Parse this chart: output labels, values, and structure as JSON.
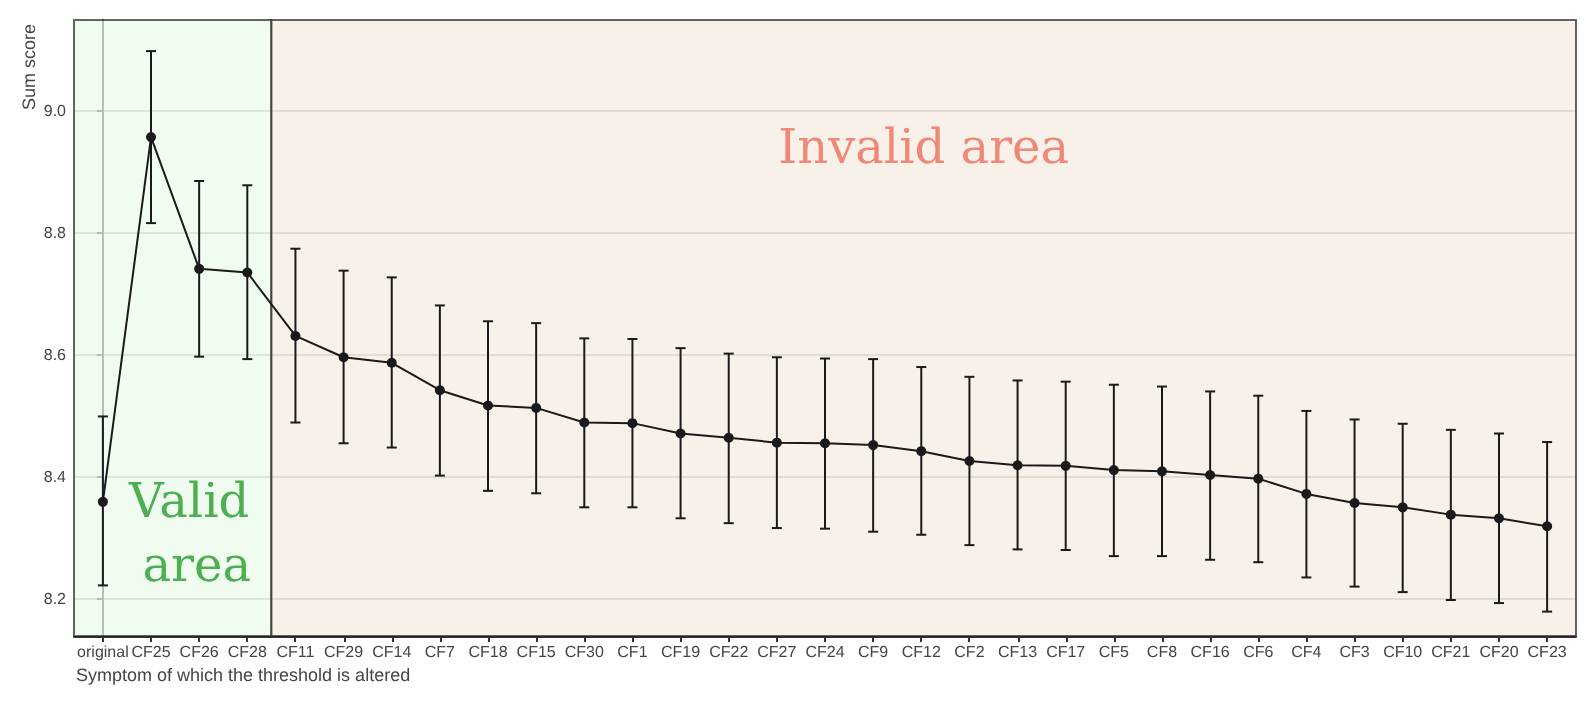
{
  "chart_data": {
    "type": "line",
    "ylabel": "Sum score",
    "xlabel": "Symptom of which the threshold is altered",
    "categories": [
      "original",
      "CF25",
      "CF26",
      "CF28",
      "CF11",
      "CF29",
      "CF14",
      "CF7",
      "CF18",
      "CF15",
      "CF30",
      "CF1",
      "CF19",
      "CF22",
      "CF27",
      "CF24",
      "CF9",
      "CF12",
      "CF2",
      "CF13",
      "CF17",
      "CF5",
      "CF8",
      "CF16",
      "CF6",
      "CF4",
      "CF3",
      "CF10",
      "CF21",
      "CF20",
      "CF23"
    ],
    "series": [
      {
        "color": "#1a1a1a",
        "values": [
          8.36,
          8.958,
          8.742,
          8.736,
          8.632,
          8.597,
          8.588,
          8.543,
          8.518,
          8.514,
          8.49,
          8.489,
          8.472,
          8.465,
          8.457,
          8.456,
          8.453,
          8.443,
          8.427,
          8.42,
          8.419,
          8.412,
          8.41,
          8.404,
          8.398,
          8.373,
          8.358,
          8.351,
          8.339,
          8.333,
          8.32
        ],
        "errors": [
          [
            8.223,
            8.5
          ],
          [
            8.817,
            9.099
          ],
          [
            8.598,
            8.886
          ],
          [
            8.594,
            8.879
          ],
          [
            8.49,
            8.775
          ],
          [
            8.456,
            8.739
          ],
          [
            8.449,
            8.728
          ],
          [
            8.403,
            8.682
          ],
          [
            8.378,
            8.656
          ],
          [
            8.374,
            8.653
          ],
          [
            8.351,
            8.628
          ],
          [
            8.351,
            8.627
          ],
          [
            8.333,
            8.612
          ],
          [
            8.325,
            8.603
          ],
          [
            8.317,
            8.597
          ],
          [
            8.316,
            8.595
          ],
          [
            8.311,
            8.594
          ],
          [
            8.306,
            8.581
          ],
          [
            8.289,
            8.565
          ],
          [
            8.282,
            8.559
          ],
          [
            8.281,
            8.557
          ],
          [
            8.271,
            8.552
          ],
          [
            8.271,
            8.549
          ],
          [
            8.265,
            8.541
          ],
          [
            8.261,
            8.534
          ],
          [
            8.236,
            8.509
          ],
          [
            8.221,
            8.495
          ],
          [
            8.212,
            8.488
          ],
          [
            8.199,
            8.478
          ],
          [
            8.194,
            8.472
          ],
          [
            8.18,
            8.458
          ]
        ]
      }
    ],
    "ylim": [
      8.14,
      9.15
    ],
    "yticks": [
      8.2,
      8.4,
      8.6,
      8.8,
      {
        "value": 9,
        "label": "9.0"
      }
    ],
    "grid": "y",
    "marker": "circle",
    "line_style": "solid",
    "bands": [
      {
        "axis": "x",
        "from": "original",
        "to": "CF28",
        "label": "Valid area",
        "color": "#e9fbea"
      },
      {
        "axis": "x",
        "from": "CF11",
        "to": "CF23",
        "label": "Invalid area",
        "color": "#f5ebe0"
      }
    ]
  }
}
